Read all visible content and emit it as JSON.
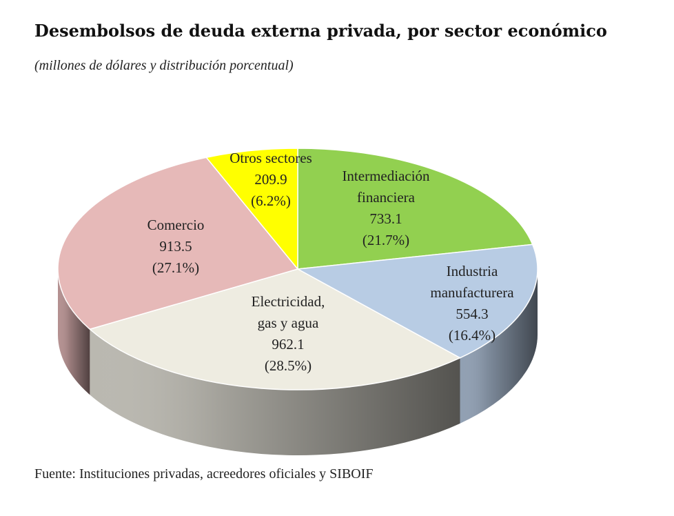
{
  "chart_data": {
    "type": "pie",
    "style": "3d",
    "title": "Desembolsos de deuda externa privada, por sector económico",
    "subtitle": "(millones de dólares y distribución porcentual)",
    "source": "Fuente: Instituciones privadas, acreedores oficiales y SIBOIF",
    "slices": [
      {
        "name": "Intermediación financiera",
        "label_lines": [
          "Intermediación",
          "financiera"
        ],
        "value": 733.1,
        "value_label": "733.1",
        "percent": 21.7,
        "percent_label": "(21.7%)",
        "color": "#92d050"
      },
      {
        "name": "Industria manufacturera",
        "label_lines": [
          "Industria",
          "manufacturera"
        ],
        "value": 554.3,
        "value_label": "554.3",
        "percent": 16.4,
        "percent_label": "(16.4%)",
        "color": "#b8cce4"
      },
      {
        "name": "Electricidad, gas y agua",
        "label_lines": [
          "Electricidad,",
          "gas y agua"
        ],
        "value": 962.1,
        "value_label": "962.1",
        "percent": 28.5,
        "percent_label": "(28.5%)",
        "color": "#eeece1"
      },
      {
        "name": "Comercio",
        "label_lines": [
          "Comercio"
        ],
        "value": 913.5,
        "value_label": "913.5",
        "percent": 27.1,
        "percent_label": "(27.1%)",
        "color": "#e6b9b8"
      },
      {
        "name": "Otros sectores",
        "label_lines": [
          "Otros sectores"
        ],
        "value": 209.9,
        "value_label": "209.9",
        "percent": 6.2,
        "percent_label": "(6.2%)",
        "color": "#ffff00"
      }
    ]
  }
}
